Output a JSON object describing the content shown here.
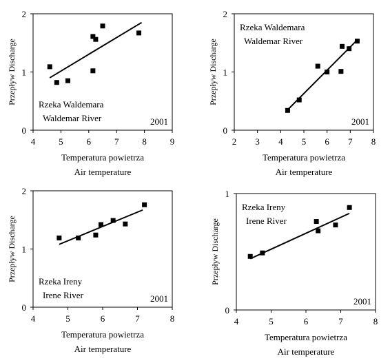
{
  "chart_data": [
    {
      "type": "scatter",
      "xlabel": "Temperatura powietrza",
      "xlabel2": "Air temperature",
      "ylabel": "Przepływ Discharge",
      "xlim": [
        4,
        9
      ],
      "ylim": [
        0,
        2
      ],
      "xticks": [
        4,
        5,
        6,
        7,
        8,
        9
      ],
      "yticks": [
        0,
        1,
        2
      ],
      "annotation_lines": [
        "Rzeka Waldemara",
        "Waldemar River"
      ],
      "annotation_pos": "bottom-left",
      "year": "2001",
      "series": [
        {
          "x": [
            4.6,
            4.85,
            5.25,
            6.15,
            6.15,
            6.25,
            6.5,
            7.8
          ],
          "y": [
            1.09,
            0.82,
            0.85,
            1.02,
            1.61,
            1.56,
            1.79,
            1.67
          ]
        }
      ],
      "trendline": {
        "x": [
          4.6,
          7.9
        ],
        "y": [
          0.9,
          1.85
        ]
      }
    },
    {
      "type": "scatter",
      "xlabel": "Temperatura powietrza",
      "xlabel2": "Air temperature",
      "ylabel": "Przepływ Discharge",
      "xlim": [
        2,
        8
      ],
      "ylim": [
        0,
        2
      ],
      "xticks": [
        2,
        3,
        4,
        5,
        6,
        7,
        8
      ],
      "yticks": [
        0,
        1,
        2
      ],
      "annotation_lines": [
        "Rzeka Waldemara",
        "Waldemar River"
      ],
      "annotation_pos": "top-left",
      "year": "2001",
      "series": [
        {
          "x": [
            4.3,
            4.8,
            5.6,
            6.0,
            6.6,
            6.65,
            6.95,
            7.3
          ],
          "y": [
            0.34,
            0.52,
            1.1,
            1.0,
            1.01,
            1.44,
            1.4,
            1.53
          ]
        }
      ],
      "trendline": {
        "x": [
          4.3,
          7.3
        ],
        "y": [
          0.35,
          1.55
        ]
      }
    },
    {
      "type": "scatter",
      "xlabel": "Temperatura powietrza",
      "xlabel2": "Air temperature",
      "ylabel": "Przepływ Discharge",
      "xlim": [
        4,
        8
      ],
      "ylim": [
        0,
        2
      ],
      "xticks": [
        4,
        5,
        6,
        7,
        8
      ],
      "yticks": [
        0,
        1,
        2
      ],
      "annotation_lines": [
        "Rzeka Ireny",
        "Irene River"
      ],
      "annotation_pos": "bottom-left",
      "year": "2001",
      "series": [
        {
          "x": [
            4.75,
            5.3,
            5.8,
            5.95,
            6.3,
            6.65,
            7.2
          ],
          "y": [
            1.19,
            1.19,
            1.24,
            1.42,
            1.49,
            1.43,
            1.76
          ]
        }
      ],
      "trendline": {
        "x": [
          4.75,
          7.15
        ],
        "y": [
          1.08,
          1.67
        ]
      }
    },
    {
      "type": "scatter",
      "xlabel": "Temperatura powietrza",
      "xlabel2": "Air temperature",
      "ylabel": "Przepływ Discharge",
      "xlim": [
        4,
        8
      ],
      "ylim": [
        0,
        1
      ],
      "xticks": [
        4,
        5,
        6,
        7,
        8
      ],
      "yticks": [
        0,
        1
      ],
      "annotation_lines": [
        "Rzeka Ireny",
        "Irene River"
      ],
      "annotation_pos": "top-left",
      "year": "2001",
      "series": [
        {
          "x": [
            4.4,
            4.75,
            6.3,
            6.35,
            6.85,
            7.25
          ],
          "y": [
            0.46,
            0.49,
            0.76,
            0.68,
            0.73,
            0.88
          ]
        }
      ],
      "trendline": {
        "x": [
          4.4,
          7.25
        ],
        "y": [
          0.44,
          0.83
        ]
      }
    }
  ]
}
